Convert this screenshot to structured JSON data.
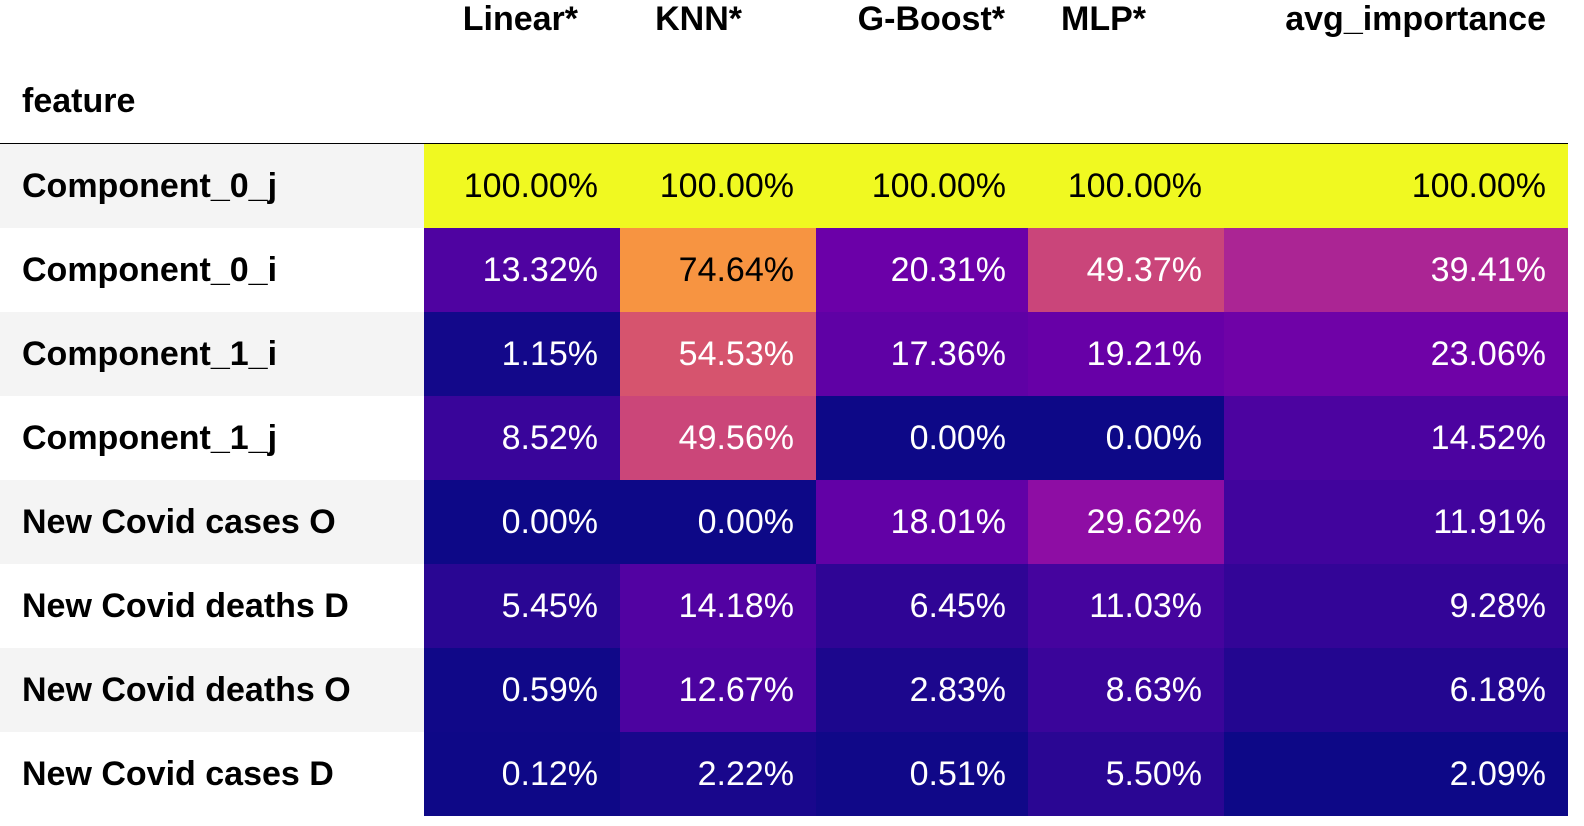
{
  "chart_data": {
    "type": "heatmap",
    "index_label": "feature",
    "columns": [
      "Linear*",
      "KNN*",
      "G-Boost*",
      "MLP*",
      "avg_importance"
    ],
    "rows": [
      {
        "feature": "Component_0_j",
        "values": [
          100.0,
          100.0,
          100.0,
          100.0,
          100.0
        ],
        "labels": [
          "100.00%",
          "100.00%",
          "100.00%",
          "100.00%",
          "100.00%"
        ]
      },
      {
        "feature": "Component_0_i",
        "values": [
          13.32,
          74.64,
          20.31,
          49.37,
          39.41
        ],
        "labels": [
          "13.32%",
          "74.64%",
          "20.31%",
          "49.37%",
          "39.41%"
        ]
      },
      {
        "feature": "Component_1_i",
        "values": [
          1.15,
          54.53,
          17.36,
          19.21,
          23.06
        ],
        "labels": [
          "1.15%",
          "54.53%",
          "17.36%",
          "19.21%",
          "23.06%"
        ]
      },
      {
        "feature": "Component_1_j",
        "values": [
          8.52,
          49.56,
          0.0,
          0.0,
          14.52
        ],
        "labels": [
          "8.52%",
          "49.56%",
          "0.00%",
          "0.00%",
          "14.52%"
        ]
      },
      {
        "feature": "New Covid cases O",
        "values": [
          0.0,
          0.0,
          18.01,
          29.62,
          11.91
        ],
        "labels": [
          "0.00%",
          "0.00%",
          "18.01%",
          "29.62%",
          "11.91%"
        ]
      },
      {
        "feature": "New Covid deaths D",
        "values": [
          5.45,
          14.18,
          6.45,
          11.03,
          9.28
        ],
        "labels": [
          "5.45%",
          "14.18%",
          "6.45%",
          "11.03%",
          "9.28%"
        ]
      },
      {
        "feature": "New Covid deaths O",
        "values": [
          0.59,
          12.67,
          2.83,
          8.63,
          6.18
        ],
        "labels": [
          "0.59%",
          "12.67%",
          "2.83%",
          "8.63%",
          "6.18%"
        ]
      },
      {
        "feature": "New Covid cases D",
        "values": [
          0.12,
          2.22,
          0.51,
          5.5,
          2.09
        ],
        "labels": [
          "0.12%",
          "2.22%",
          "0.51%",
          "5.50%",
          "2.09%"
        ]
      }
    ],
    "colormap": "plasma",
    "column_scale": "per-column min-max",
    "row_stripe_colors": [
      "#f4f4f4",
      "#ffffff"
    ],
    "text_color_dark": "#000000",
    "text_color_light": "#ffffff"
  }
}
